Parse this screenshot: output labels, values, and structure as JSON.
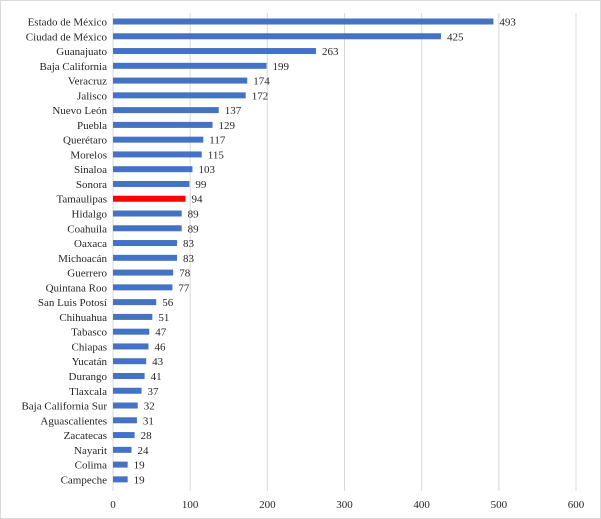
{
  "chart_data": {
    "type": "bar",
    "orientation": "horizontal",
    "categories": [
      "Estado de México",
      "Ciudad de México",
      "Guanajuato",
      "Baja California",
      "Veracruz",
      "Jalisco",
      "Nuevo León",
      "Puebla",
      "Querétaro",
      "Morelos",
      "Sinaloa",
      "Sonora",
      "Tamaulipas",
      "Hidalgo",
      "Coahuila",
      "Oaxaca",
      "Michoacán",
      "Guerrero",
      "Quintana Roo",
      "San Luis Potosí",
      "Chihuahua",
      "Tabasco",
      "Chiapas",
      "Yucatán",
      "Durango",
      "Tlaxcala",
      "Baja California Sur",
      "Aguascalientes",
      "Zacatecas",
      "Nayarit",
      "Colima",
      "Campeche"
    ],
    "values": [
      493,
      425,
      263,
      199,
      174,
      172,
      137,
      129,
      117,
      115,
      103,
      99,
      94,
      89,
      89,
      83,
      83,
      78,
      77,
      56,
      51,
      47,
      46,
      43,
      41,
      37,
      32,
      31,
      28,
      24,
      19,
      19
    ],
    "highlight": "Tamaulipas",
    "colors": {
      "bar": "#4472c4",
      "highlight": "#ff0000",
      "grid": "#d9d9d9"
    },
    "xlim": [
      0,
      600
    ],
    "xticks": [
      0,
      100,
      200,
      300,
      400,
      500,
      600
    ],
    "title": "",
    "xlabel": "",
    "ylabel": "",
    "grid": "vertical",
    "legend": "none"
  }
}
